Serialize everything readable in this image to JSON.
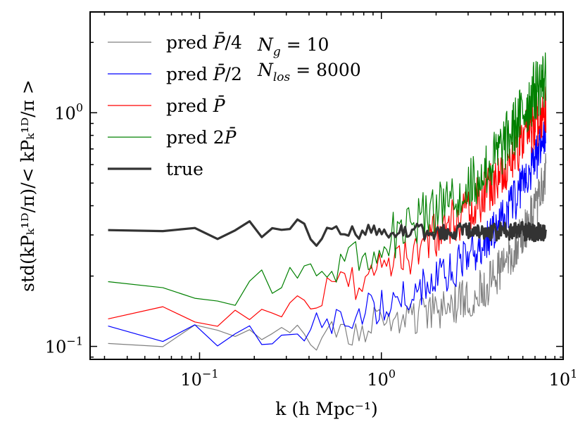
{
  "chart_data": {
    "type": "line",
    "title": "",
    "xscale": "log",
    "yscale": "log",
    "xlim": [
      0.025,
      10
    ],
    "ylim": [
      0.088,
      2.7
    ],
    "xlabel": "k (h Mpc⁻¹)",
    "ylabel": "std(kPₖ¹ᴰ/π)/< kPₖ¹ᴰ/π >",
    "x_ticks": [
      {
        "value": 0.1,
        "label_base": "10",
        "label_exp": "−1"
      },
      {
        "value": 1,
        "label_base": "10",
        "label_exp": "0"
      },
      {
        "value": 10,
        "label_base": "10",
        "label_exp": "1"
      }
    ],
    "y_ticks": [
      {
        "value": 0.1,
        "label_base": "10",
        "label_exp": "−1"
      },
      {
        "value": 1,
        "label_base": "10",
        "label_exp": "0"
      }
    ],
    "legend_position": "top-left",
    "annotations": [
      {
        "main": "N",
        "sub": "g",
        "rest": " = 10"
      },
      {
        "main": "N",
        "sub": "los",
        "rest": " = 8000"
      }
    ],
    "series": [
      {
        "name": "pred P̄/4",
        "legend_prefix": "pred ",
        "legend_sym": "P̄",
        "legend_suffix": "/4",
        "color": "#808080",
        "width": 1.2,
        "anchors": [
          [
            0.031,
            0.104
          ],
          [
            0.1,
            0.112
          ],
          [
            0.15,
            0.112
          ],
          [
            0.2,
            0.112
          ],
          [
            0.3,
            0.108
          ],
          [
            0.45,
            0.108
          ],
          [
            0.6,
            0.112
          ],
          [
            0.8,
            0.12
          ],
          [
            1.0,
            0.128
          ],
          [
            1.5,
            0.135
          ],
          [
            2.0,
            0.14
          ],
          [
            3.0,
            0.16
          ],
          [
            4.0,
            0.19
          ],
          [
            5.0,
            0.24
          ],
          [
            6.0,
            0.3
          ],
          [
            7.0,
            0.38
          ],
          [
            8.0,
            0.53
          ]
        ],
        "noise": 0.06,
        "seed": 1
      },
      {
        "name": "pred P̄/2",
        "legend_prefix": "pred ",
        "legend_sym": "P̄",
        "legend_suffix": "/2",
        "color": "#0000ff",
        "width": 1.2,
        "anchors": [
          [
            0.031,
            0.116
          ],
          [
            0.1,
            0.114
          ],
          [
            0.13,
            0.107
          ],
          [
            0.2,
            0.11
          ],
          [
            0.3,
            0.118
          ],
          [
            0.4,
            0.12
          ],
          [
            0.5,
            0.125
          ],
          [
            0.7,
            0.135
          ],
          [
            1.0,
            0.15
          ],
          [
            1.5,
            0.17
          ],
          [
            2.0,
            0.19
          ],
          [
            3.0,
            0.24
          ],
          [
            4.0,
            0.3
          ],
          [
            5.0,
            0.38
          ],
          [
            6.0,
            0.5
          ],
          [
            7.0,
            0.62
          ],
          [
            8.0,
            0.85
          ]
        ],
        "noise": 0.06,
        "seed": 2
      },
      {
        "name": "pred P̄",
        "legend_prefix": "pred ",
        "legend_sym": "P̄",
        "legend_suffix": "",
        "color": "#ff0000",
        "width": 1.2,
        "anchors": [
          [
            0.031,
            0.135
          ],
          [
            0.1,
            0.132
          ],
          [
            0.13,
            0.125
          ],
          [
            0.2,
            0.14
          ],
          [
            0.3,
            0.155
          ],
          [
            0.4,
            0.16
          ],
          [
            0.5,
            0.175
          ],
          [
            0.7,
            0.19
          ],
          [
            1.0,
            0.21
          ],
          [
            1.5,
            0.25
          ],
          [
            2.0,
            0.3
          ],
          [
            3.0,
            0.38
          ],
          [
            4.0,
            0.48
          ],
          [
            5.0,
            0.6
          ],
          [
            6.0,
            0.75
          ],
          [
            7.0,
            0.9
          ],
          [
            8.0,
            1.05
          ]
        ],
        "noise": 0.07,
        "seed": 3
      },
      {
        "name": "pred 2P̄",
        "legend_prefix": "pred 2",
        "legend_sym": "P̄",
        "legend_suffix": "",
        "color": "#008000",
        "width": 1.2,
        "anchors": [
          [
            0.031,
            0.18
          ],
          [
            0.065,
            0.158
          ],
          [
            0.1,
            0.175
          ],
          [
            0.15,
            0.17
          ],
          [
            0.2,
            0.18
          ],
          [
            0.3,
            0.2
          ],
          [
            0.4,
            0.21
          ],
          [
            0.6,
            0.23
          ],
          [
            0.8,
            0.25
          ],
          [
            1.0,
            0.28
          ],
          [
            1.5,
            0.33
          ],
          [
            2.0,
            0.39
          ],
          [
            3.0,
            0.48
          ],
          [
            4.0,
            0.6
          ],
          [
            5.0,
            0.78
          ],
          [
            6.0,
            1.0
          ],
          [
            7.0,
            1.25
          ],
          [
            8.0,
            1.4
          ]
        ],
        "noise": 0.08,
        "seed": 4
      },
      {
        "name": "true",
        "legend_prefix": "true",
        "legend_sym": "",
        "legend_suffix": "",
        "color": "#333333",
        "width": 3.2,
        "anchors": [
          [
            0.031,
            0.32
          ],
          [
            0.065,
            0.3
          ],
          [
            0.1,
            0.315
          ],
          [
            0.125,
            0.297
          ],
          [
            0.16,
            0.305
          ],
          [
            0.19,
            0.33
          ],
          [
            0.22,
            0.305
          ],
          [
            0.26,
            0.31
          ],
          [
            0.3,
            0.3
          ],
          [
            0.34,
            0.345
          ],
          [
            0.38,
            0.34
          ],
          [
            0.43,
            0.27
          ],
          [
            0.5,
            0.32
          ],
          [
            0.6,
            0.305
          ],
          [
            0.8,
            0.31
          ],
          [
            1.0,
            0.31
          ],
          [
            2.0,
            0.31
          ],
          [
            4.0,
            0.31
          ],
          [
            6.0,
            0.31
          ],
          [
            8.0,
            0.305
          ]
        ],
        "noise": 0.025,
        "seed": 5
      }
    ]
  }
}
